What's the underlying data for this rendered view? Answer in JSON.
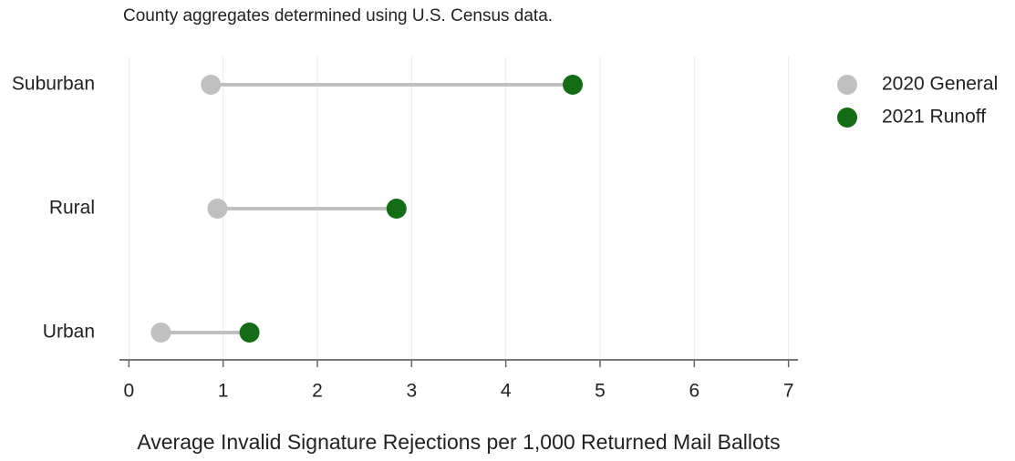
{
  "chart_data": {
    "type": "dumbbell",
    "subtitle": "County aggregates determined using U.S. Census data.",
    "x_label": "Average Invalid Signature Rejections per 1,000 Returned Mail Ballots",
    "categories": [
      "Suburban",
      "Rural",
      "Urban"
    ],
    "series": [
      {
        "name": "2020 General",
        "color": "#c0c0c0",
        "values": [
          0.87,
          0.94,
          0.34
        ]
      },
      {
        "name": "2021 Runoff",
        "color": "#146c14",
        "values": [
          4.71,
          2.84,
          1.28
        ]
      }
    ],
    "xlim": [
      -0.1,
      7.1
    ],
    "xticks": [
      0,
      1,
      2,
      3,
      4,
      5,
      6,
      7
    ],
    "grid": true,
    "legend": "right"
  }
}
